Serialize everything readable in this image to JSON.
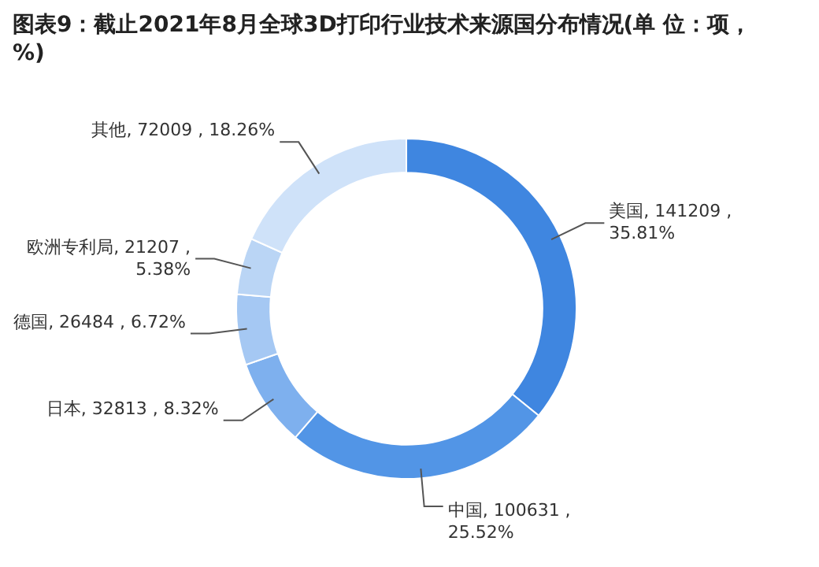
{
  "chart_data": {
    "type": "donut",
    "title": "图表9：截止2021年8月全球3D打印行业技术来源国分布情况(单 位：项，%)",
    "categories": [
      "美国",
      "中国",
      "日本",
      "德国",
      "欧洲专利局",
      "其他"
    ],
    "values": [
      141209,
      100631,
      32813,
      26484,
      21207,
      72009
    ],
    "value_labels": [
      "141209 , 35.81%",
      "100631 , 25.52%",
      "32813 , 8.32%",
      "26484 , 6.72%",
      "21207 , 5.38%",
      "72009 , 18.26%"
    ],
    "colors": [
      "#3f86e0",
      "#5295e6",
      "#7eb0ee",
      "#a5c8f3",
      "#bad5f5",
      "#cfe2f9"
    ]
  }
}
